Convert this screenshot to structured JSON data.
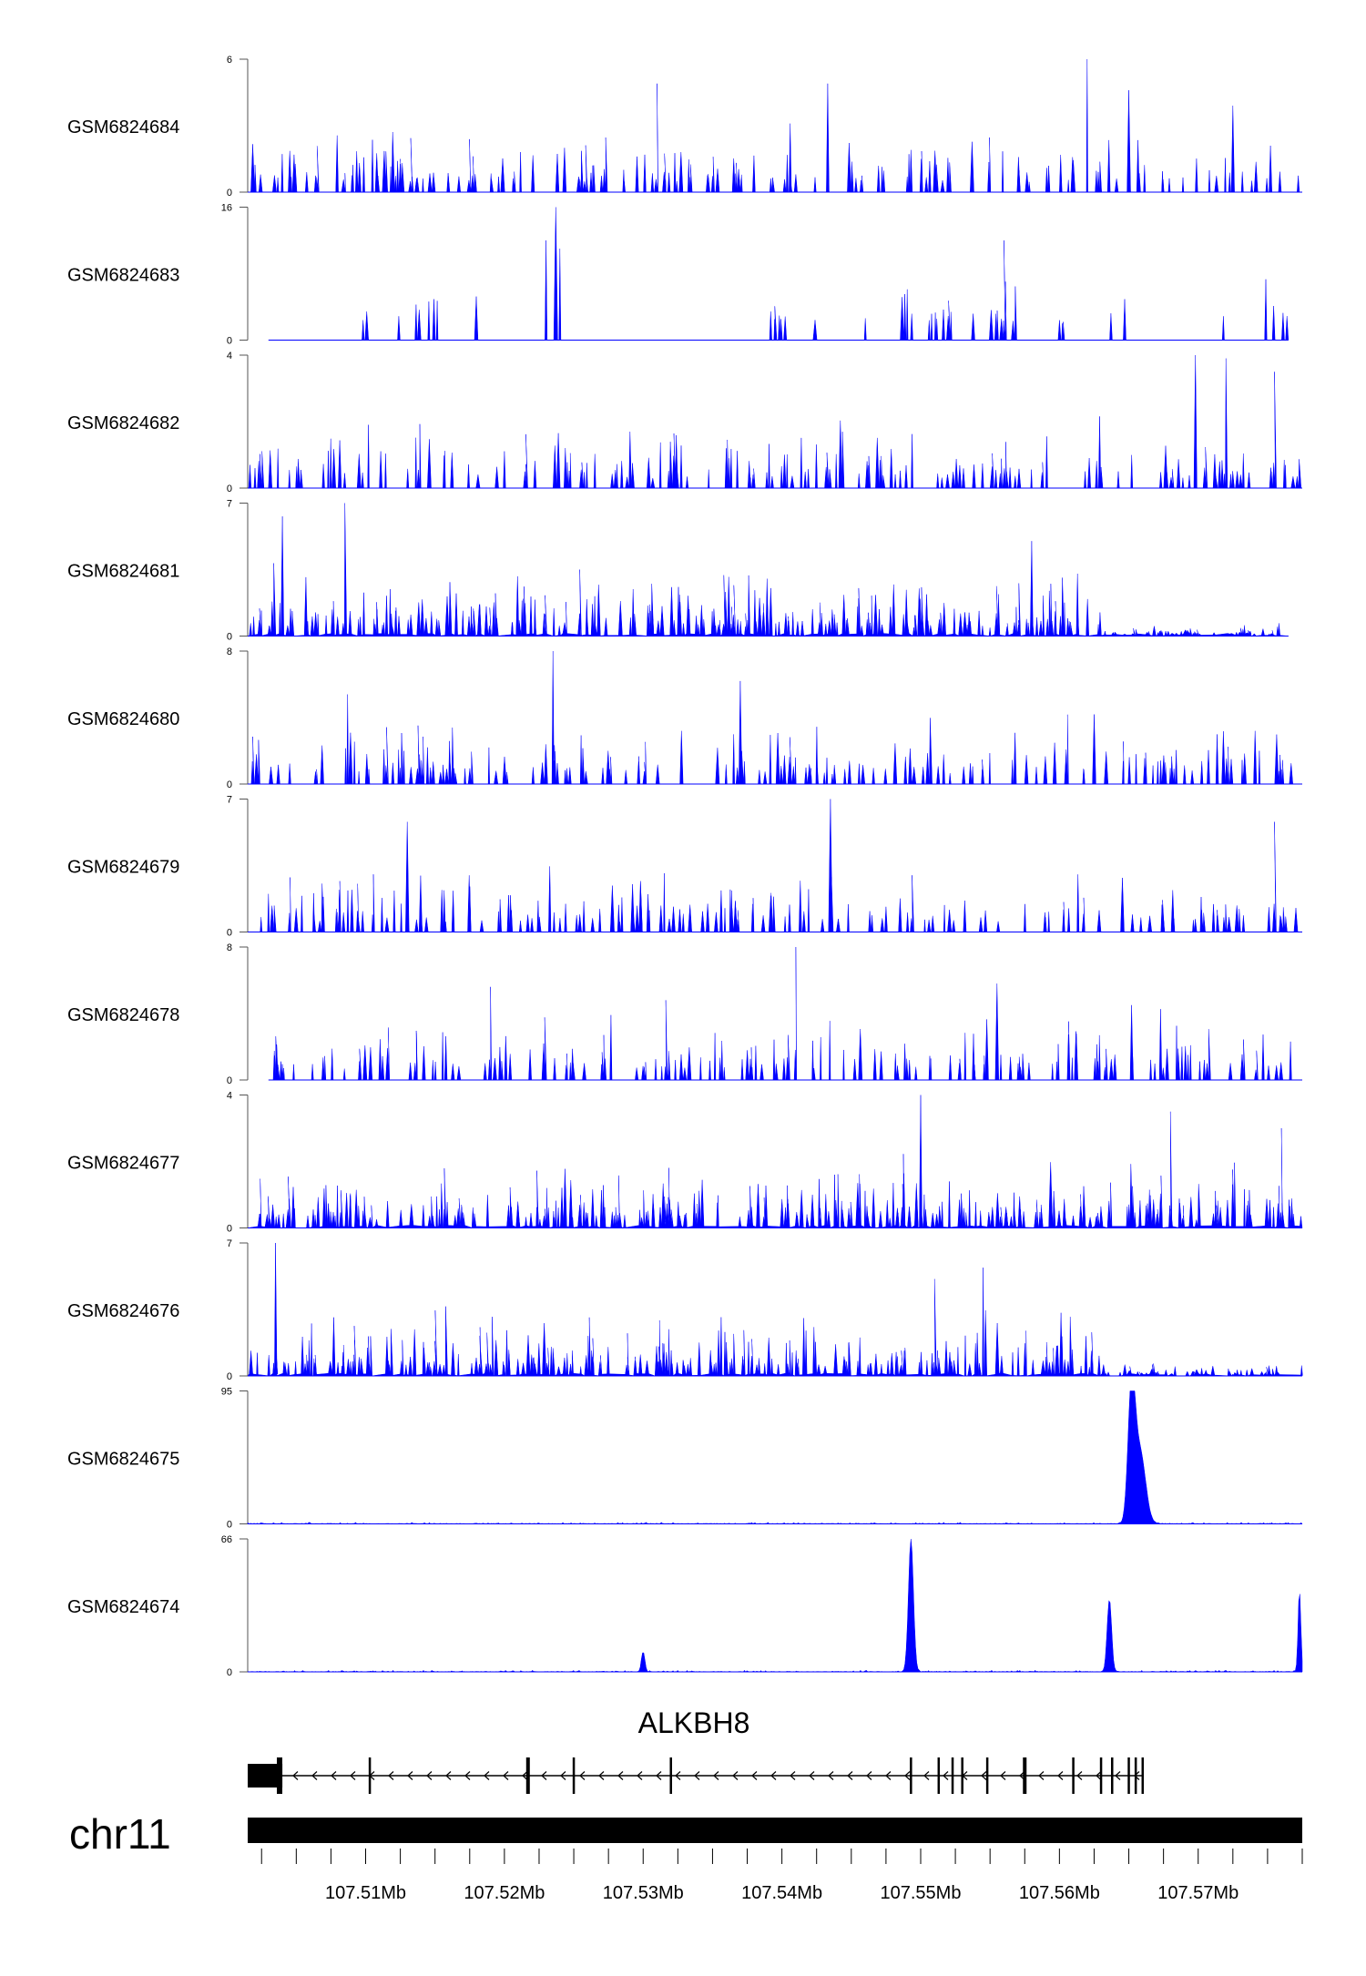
{
  "chart_data": {
    "type": "area",
    "title": "",
    "chromosome": "chr11",
    "x_unit": "Mb",
    "xlim": [
      107.5015,
      107.5775
    ],
    "ticks": [
      {
        "pos": 107.51,
        "label": "107.51Mb"
      },
      {
        "pos": 107.52,
        "label": "107.52Mb"
      },
      {
        "pos": 107.53,
        "label": "107.53Mb"
      },
      {
        "pos": 107.54,
        "label": "107.54Mb"
      },
      {
        "pos": 107.55,
        "label": "107.55Mb"
      },
      {
        "pos": 107.56,
        "label": "107.56Mb"
      },
      {
        "pos": 107.57,
        "label": "107.57Mb"
      }
    ],
    "minor_tick_step": 0.0025,
    "tracks": [
      {
        "name": "GSM6824684",
        "ymin": 0,
        "ymax": 6,
        "ymin_label": "0",
        "ymax_label": "6",
        "color": "#0000ff",
        "style": "sparse",
        "seed": 11,
        "xstart": 107.5015,
        "xend": 107.5775,
        "peaks": [
          {
            "x": 107.531,
            "h": 4.9
          },
          {
            "x": 107.5433,
            "h": 4.9
          },
          {
            "x": 107.562,
            "h": 6.0
          },
          {
            "x": 107.565,
            "h": 4.6
          },
          {
            "x": 107.5725,
            "h": 3.9
          }
        ]
      },
      {
        "name": "GSM6824683",
        "ymin": 0,
        "ymax": 16,
        "ymin_label": "0",
        "ymax_label": "16",
        "color": "#0000ff",
        "style": "tents",
        "seed": 23,
        "xstart": 107.503,
        "xend": 107.5765,
        "peaks": [
          {
            "x": 107.5237,
            "h": 16
          },
          {
            "x": 107.523,
            "h": 12
          },
          {
            "x": 107.524,
            "h": 11
          },
          {
            "x": 107.556,
            "h": 12
          }
        ]
      },
      {
        "name": "GSM6824682",
        "ymin": 0,
        "ymax": 4,
        "ymin_label": "0",
        "ymax_label": "4",
        "color": "#0000ff",
        "style": "sparse",
        "seed": 37,
        "xstart": 107.5015,
        "xend": 107.5775,
        "peaks": [
          {
            "x": 107.5698,
            "h": 4.0
          },
          {
            "x": 107.572,
            "h": 3.9
          },
          {
            "x": 107.5755,
            "h": 3.5
          }
        ]
      },
      {
        "name": "GSM6824681",
        "ymin": 0,
        "ymax": 7,
        "ymin_label": "0",
        "ymax_label": "7",
        "color": "#0000ff",
        "style": "dense_fade",
        "seed": 41,
        "xstart": 107.5015,
        "xend": 107.5765,
        "fade_at": 107.563,
        "peaks": [
          {
            "x": 107.504,
            "h": 6.3
          },
          {
            "x": 107.5085,
            "h": 7.0
          },
          {
            "x": 107.558,
            "h": 5.0
          }
        ]
      },
      {
        "name": "GSM6824680",
        "ymin": 0,
        "ymax": 8,
        "ymin_label": "0",
        "ymax_label": "8",
        "color": "#0000ff",
        "style": "sparse",
        "seed": 53,
        "xstart": 107.5015,
        "xend": 107.5775,
        "peaks": [
          {
            "x": 107.5235,
            "h": 8.0
          },
          {
            "x": 107.537,
            "h": 6.2
          },
          {
            "x": 107.5087,
            "h": 5.4
          }
        ]
      },
      {
        "name": "GSM6824679",
        "ymin": 0,
        "ymax": 7,
        "ymin_label": "0",
        "ymax_label": "7",
        "color": "#0000ff",
        "style": "sparse",
        "seed": 67,
        "xstart": 107.5015,
        "xend": 107.5775,
        "peaks": [
          {
            "x": 107.5435,
            "h": 7.0
          },
          {
            "x": 107.5755,
            "h": 5.8
          },
          {
            "x": 107.513,
            "h": 5.8
          }
        ]
      },
      {
        "name": "GSM6824678",
        "ymin": 0,
        "ymax": 8,
        "ymin_label": "0",
        "ymax_label": "8",
        "color": "#0000ff",
        "style": "sparse",
        "seed": 71,
        "xstart": 107.503,
        "xend": 107.5775,
        "peaks": [
          {
            "x": 107.541,
            "h": 8.0
          },
          {
            "x": 107.5555,
            "h": 5.8
          },
          {
            "x": 107.519,
            "h": 5.6
          }
        ]
      },
      {
        "name": "GSM6824677",
        "ymin": 0,
        "ymax": 4,
        "ymin_label": "0",
        "ymax_label": "4",
        "color": "#0000ff",
        "style": "dense",
        "seed": 83,
        "xstart": 107.5015,
        "xend": 107.5775,
        "peaks": [
          {
            "x": 107.55,
            "h": 4.0
          },
          {
            "x": 107.568,
            "h": 3.5
          },
          {
            "x": 107.576,
            "h": 3.0
          }
        ]
      },
      {
        "name": "GSM6824676",
        "ymin": 0,
        "ymax": 7,
        "ymin_label": "0",
        "ymax_label": "7",
        "color": "#0000ff",
        "style": "dense_fade",
        "seed": 97,
        "xstart": 107.5015,
        "xend": 107.5775,
        "fade_at": 107.563,
        "peaks": [
          {
            "x": 107.5035,
            "h": 7.0
          },
          {
            "x": 107.5545,
            "h": 5.7
          },
          {
            "x": 107.551,
            "h": 5.1
          }
        ]
      },
      {
        "name": "GSM6824675",
        "ymin": 0,
        "ymax": 95,
        "ymin_label": "0",
        "ymax_label": "95",
        "color": "#0000ff",
        "style": "flat_peaks",
        "seed": 101,
        "xstart": 107.5015,
        "xend": 107.5775,
        "peaks": [
          {
            "x": 107.5652,
            "h": 95,
            "w": 0.00025
          },
          {
            "x": 107.5658,
            "h": 52,
            "w": 0.0004
          }
        ]
      },
      {
        "name": "GSM6824674",
        "ymin": 0,
        "ymax": 66,
        "ymin_label": "0",
        "ymax_label": "66",
        "color": "#0000ff",
        "style": "flat_peaks",
        "seed": 113,
        "xstart": 107.5015,
        "xend": 107.5775,
        "peaks": [
          {
            "x": 107.53,
            "h": 10,
            "w": 0.00012
          },
          {
            "x": 107.5493,
            "h": 66,
            "w": 0.00018
          },
          {
            "x": 107.5636,
            "h": 36,
            "w": 0.00016
          },
          {
            "x": 107.5773,
            "h": 40,
            "w": 0.0001
          }
        ]
      }
    ],
    "gene": {
      "name": "ALKBH8",
      "strand": "-",
      "start": 107.5015,
      "end": 107.566,
      "utr_block": [
        107.5015,
        107.504
      ],
      "cds_start": 107.5036,
      "exons": [
        107.5037,
        107.5103,
        107.5217,
        107.525,
        107.532,
        107.5493,
        107.5513,
        107.5523,
        107.553,
        107.5548,
        107.5575,
        107.561,
        107.563,
        107.5638,
        107.565,
        107.5655,
        107.566
      ]
    }
  }
}
